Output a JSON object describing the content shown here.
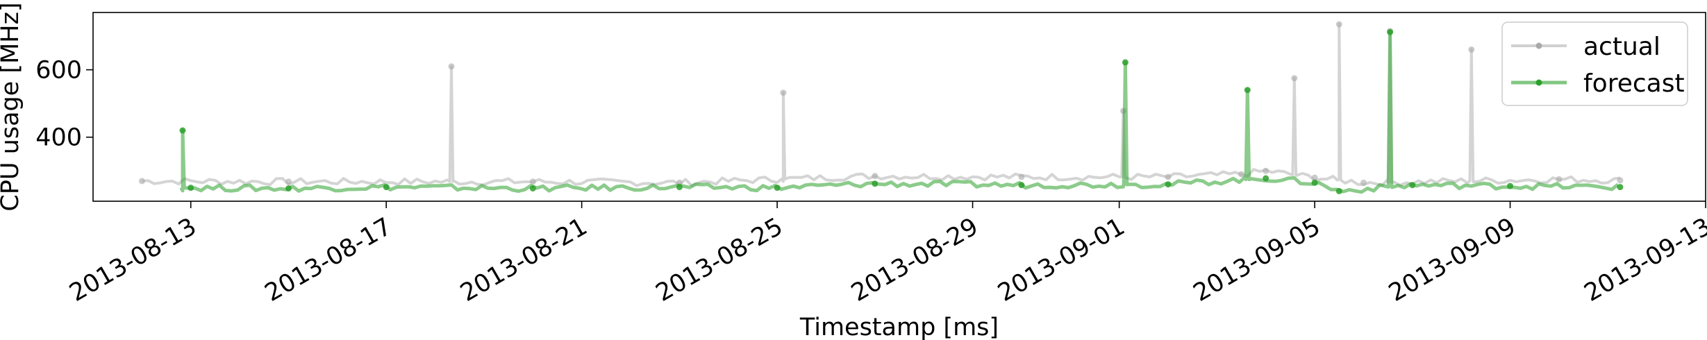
{
  "chart_data": {
    "type": "line",
    "title": "",
    "xlabel": "Timestamp [ms]",
    "ylabel": "CPU usage [MHz]",
    "x_range": [
      "2013-08-11",
      "2013-09-13"
    ],
    "ylim": [
      210,
      770
    ],
    "x_ticks": [
      "2013-08-13",
      "2013-08-17",
      "2013-08-21",
      "2013-08-25",
      "2013-08-29",
      "2013-09-01",
      "2013-09-05",
      "2013-09-09",
      "2013-09-13"
    ],
    "y_ticks": [
      400,
      600
    ],
    "grid": false,
    "legend": {
      "position": "top-right",
      "entries": [
        "actual",
        "forecast"
      ]
    },
    "series": [
      {
        "name": "actual",
        "color": "#a9a9a9",
        "x": [
          "2013-08-12",
          "2013-08-15",
          "2013-08-18 08:00",
          "2013-08-20",
          "2013-08-23",
          "2013-08-25 03:00",
          "2013-08-27",
          "2013-08-30",
          "2013-09-01 02:00",
          "2013-09-02",
          "2013-09-03 12:00",
          "2013-09-04",
          "2013-09-04 14:00",
          "2013-09-05",
          "2013-09-05 12:00",
          "2013-09-06",
          "2013-09-06 13:00",
          "2013-09-08 05:00",
          "2013-09-10",
          "2013-09-11 06:00"
        ],
        "values": [
          270,
          268,
          610,
          268,
          265,
          532,
          285,
          282,
          478,
          282,
          290,
          300,
          575,
          280,
          735,
          265,
          715,
          660,
          275,
          272
        ]
      },
      {
        "name": "forecast",
        "color": "#2ca02c",
        "x": [
          "2013-08-12 20:00",
          "2013-08-13",
          "2013-08-15",
          "2013-08-17",
          "2013-08-20",
          "2013-08-23",
          "2013-08-25",
          "2013-08-27",
          "2013-08-30",
          "2013-09-01 03:00",
          "2013-09-02",
          "2013-09-03 15:00",
          "2013-09-04",
          "2013-09-05",
          "2013-09-05 12:00",
          "2013-09-06 13:00",
          "2013-09-07",
          "2013-09-09",
          "2013-09-11 06:00"
        ],
        "values": [
          420,
          250,
          248,
          252,
          248,
          252,
          250,
          262,
          258,
          622,
          260,
          540,
          278,
          265,
          240,
          712,
          258,
          255,
          252
        ]
      }
    ]
  }
}
